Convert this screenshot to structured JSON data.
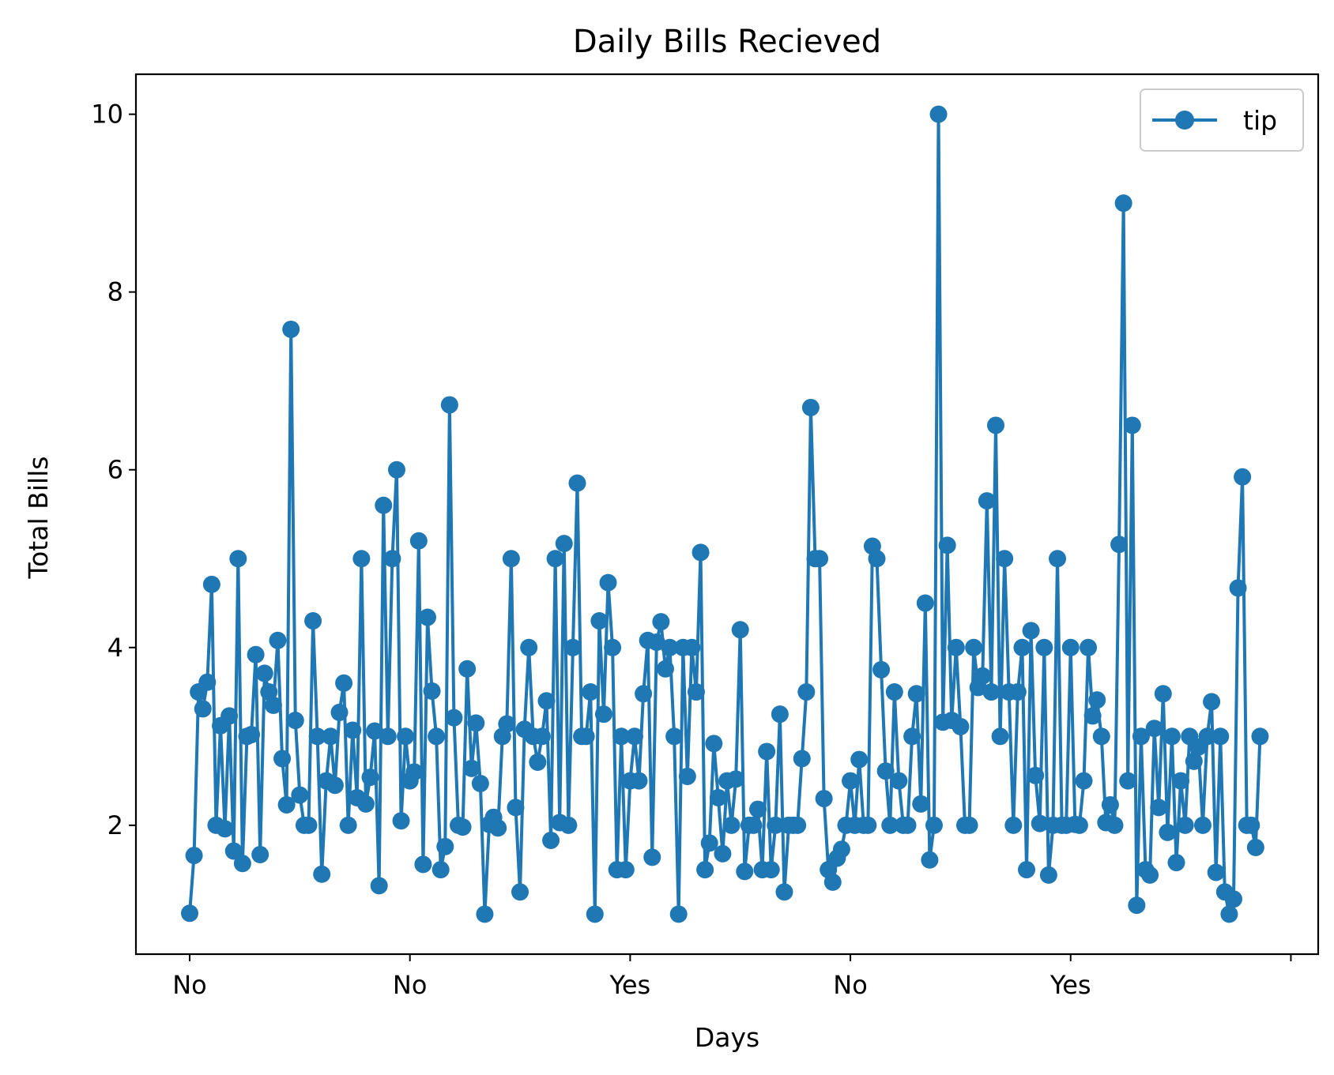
{
  "chart_data": {
    "type": "line",
    "title": "Daily Bills Recieved",
    "xlabel": "Days",
    "ylabel": "Total Bills",
    "ylim": [
      0.55,
      10.45
    ],
    "xlim": [
      -12.2,
      256.2
    ],
    "yticks": [
      2,
      4,
      6,
      8,
      10
    ],
    "xticks": [
      {
        "pos": 0,
        "label": "No"
      },
      {
        "pos": 50,
        "label": "No"
      },
      {
        "pos": 100,
        "label": "Yes"
      },
      {
        "pos": 150,
        "label": "No"
      },
      {
        "pos": 200,
        "label": "Yes"
      },
      {
        "pos": 250,
        "label": ""
      }
    ],
    "grid": false,
    "legend_position": "upper right",
    "series": [
      {
        "name": "tip",
        "color": "#1f77b4",
        "marker": "circle",
        "values": [
          1.01,
          1.66,
          3.5,
          3.31,
          3.61,
          4.71,
          2.0,
          3.12,
          1.96,
          3.23,
          1.71,
          5.0,
          1.57,
          3.0,
          3.02,
          3.92,
          1.67,
          3.71,
          3.5,
          3.35,
          4.08,
          2.75,
          2.23,
          7.58,
          3.18,
          2.34,
          2.0,
          2.0,
          4.3,
          3.0,
          1.45,
          2.5,
          3.0,
          2.45,
          3.27,
          3.6,
          2.0,
          3.07,
          2.31,
          5.0,
          2.24,
          2.54,
          3.06,
          1.32,
          5.6,
          3.0,
          5.0,
          6.0,
          2.05,
          3.0,
          2.5,
          2.6,
          5.2,
          1.56,
          4.34,
          3.51,
          3.0,
          1.5,
          1.76,
          6.73,
          3.21,
          2.0,
          1.98,
          3.76,
          2.64,
          3.15,
          2.47,
          1.0,
          2.01,
          2.09,
          1.97,
          3.0,
          3.14,
          5.0,
          2.2,
          1.25,
          3.08,
          4.0,
          3.0,
          2.71,
          3.0,
          3.4,
          1.83,
          5.0,
          2.03,
          5.17,
          2.0,
          4.0,
          5.85,
          3.0,
          3.0,
          3.5,
          1.0,
          4.3,
          3.25,
          4.73,
          4.0,
          1.5,
          3.0,
          1.5,
          2.5,
          3.0,
          2.5,
          3.48,
          4.08,
          1.64,
          4.06,
          4.29,
          3.76,
          4.0,
          3.0,
          1.0,
          4.0,
          2.55,
          4.0,
          3.5,
          5.07,
          1.5,
          1.8,
          2.92,
          2.31,
          1.68,
          2.5,
          2.0,
          2.52,
          4.2,
          1.48,
          2.0,
          2.0,
          2.18,
          1.5,
          2.83,
          1.5,
          2.0,
          3.25,
          1.25,
          2.0,
          2.0,
          2.0,
          2.75,
          3.5,
          6.7,
          5.0,
          5.0,
          2.3,
          1.5,
          1.36,
          1.63,
          1.73,
          2.0,
          2.5,
          2.0,
          2.74,
          2.0,
          2.0,
          5.14,
          5.0,
          3.75,
          2.61,
          2.0,
          3.5,
          2.5,
          2.0,
          2.0,
          3.0,
          3.48,
          2.24,
          4.5,
          1.61,
          2.0,
          10.0,
          3.16,
          5.15,
          3.18,
          4.0,
          3.11,
          2.0,
          2.0,
          4.0,
          3.55,
          3.68,
          5.65,
          3.5,
          6.5,
          3.0,
          5.0,
          3.5,
          2.0,
          3.5,
          4.0,
          1.5,
          4.19,
          2.56,
          2.02,
          4.0,
          1.44,
          2.0,
          5.0,
          2.0,
          2.0,
          4.0,
          2.01,
          2.0,
          2.5,
          4.0,
          3.23,
          3.41,
          3.0,
          2.03,
          2.23,
          2.0,
          5.16,
          9.0,
          2.5,
          6.5,
          1.1,
          3.0,
          1.5,
          1.44,
          3.09,
          2.2,
          3.48,
          1.92,
          3.0,
          1.58,
          2.5,
          2.0,
          3.0,
          2.72,
          2.88,
          2.0,
          3.0,
          3.39,
          1.47,
          3.0,
          1.25,
          1.0,
          1.17,
          4.67,
          5.92,
          2.0,
          2.0,
          1.75,
          3.0
        ]
      }
    ]
  }
}
